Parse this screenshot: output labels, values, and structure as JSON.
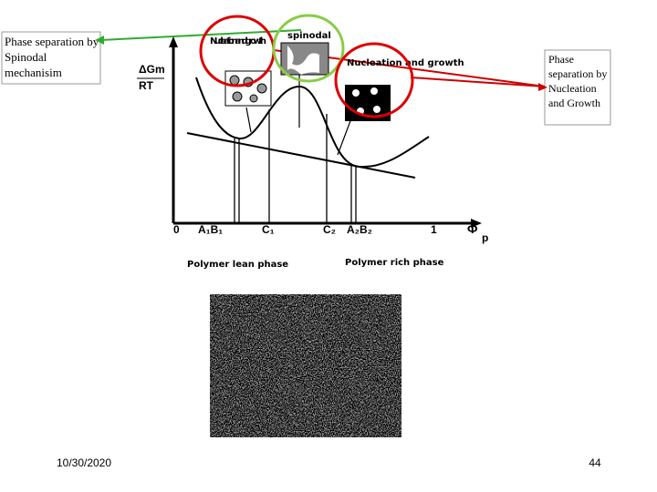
{
  "callouts": {
    "spinodal": "Phase separation by Spinodal mechanisim",
    "nucleation": "Phase separation by Nucleation and Growth"
  },
  "diagram": {
    "y_label_top": "ΔGm",
    "y_label_bottom": "RT",
    "inset_left": "Nucleation and growth",
    "inset_middle": "spinodal",
    "inset_right": "Nucleation and growth",
    "x_labels": [
      "0",
      "A₁B₁",
      "C₁",
      "C₂",
      "A₂B₂",
      "1"
    ],
    "x_axis_symbol": "Φ",
    "x_axis_subscript": "p",
    "lean_phase": "Polymer lean phase",
    "rich_phase": "Polymer rich phase"
  },
  "footer": {
    "date": "10/30/2020",
    "page": "44"
  }
}
